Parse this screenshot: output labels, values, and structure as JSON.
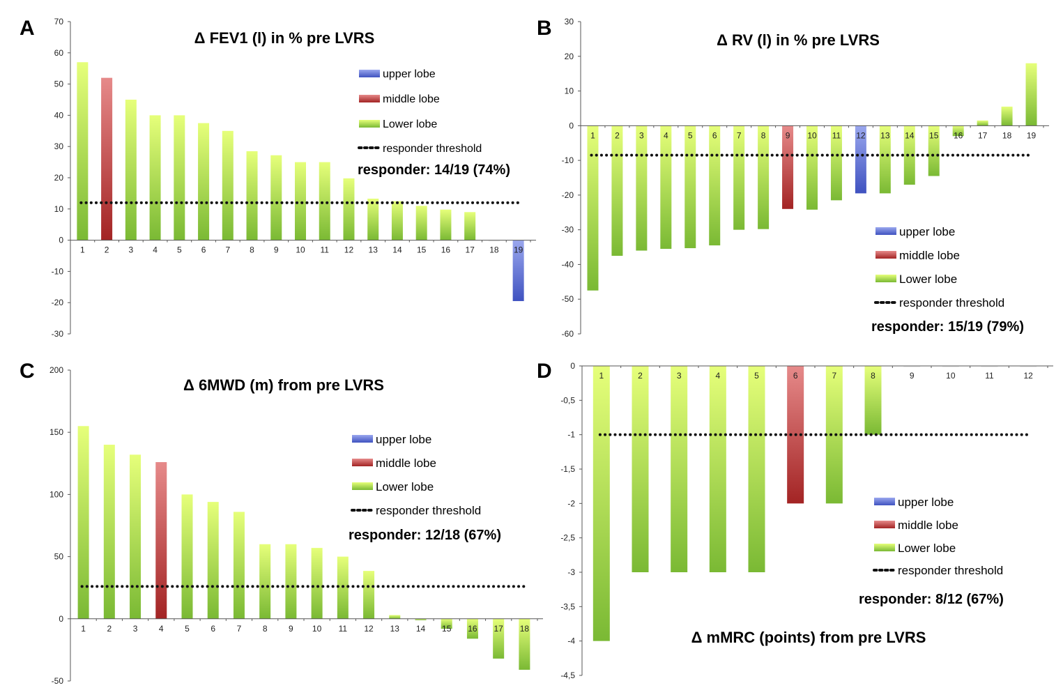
{
  "colors": {
    "upper": "#3f57c9",
    "middle": "#b63434",
    "lower_top": "#e6ff7a",
    "lower_bottom": "#7ab934",
    "upper_top": "#9aa7ee",
    "upper_bottom": "#3f52c0",
    "middle_top": "#e68a8a",
    "middle_bottom": "#a32424",
    "axis": "#555555",
    "threshold": "#111111"
  },
  "chart_data": [
    {
      "panel_letter": "A",
      "type": "bar",
      "title": "Δ FEV1 (l) in % pre LVRS",
      "ylim": [
        -30,
        70
      ],
      "yticks": [
        -30,
        -20,
        -10,
        0,
        10,
        20,
        30,
        40,
        50,
        60,
        70
      ],
      "ytick_labels": [
        "-30",
        "-20",
        "-10",
        "0",
        "10",
        "20",
        "30",
        "40",
        "50",
        "60",
        "70"
      ],
      "categories": [
        "1",
        "2",
        "3",
        "4",
        "5",
        "6",
        "7",
        "8",
        "9",
        "10",
        "11",
        "12",
        "13",
        "14",
        "15",
        "16",
        "17",
        "18",
        "19"
      ],
      "values": [
        57,
        52,
        45,
        40,
        40,
        37.5,
        35,
        28.5,
        27.2,
        25,
        25,
        19.8,
        13.3,
        12.5,
        11,
        9.8,
        9,
        0,
        -19.5
      ],
      "lobes": [
        "lower",
        "middle",
        "lower",
        "lower",
        "lower",
        "lower",
        "lower",
        "lower",
        "lower",
        "lower",
        "lower",
        "lower",
        "lower",
        "lower",
        "lower",
        "lower",
        "lower",
        "lower",
        "upper"
      ],
      "threshold": 12,
      "legend": [
        "upper lobe",
        "middle lobe",
        "Lower lobe",
        "responder threshold"
      ],
      "responder": "responder:  14/19 (74%)"
    },
    {
      "panel_letter": "B",
      "type": "bar",
      "title": "Δ RV (l) in % pre LVRS",
      "ylim": [
        -60,
        30
      ],
      "yticks": [
        -60,
        -50,
        -40,
        -30,
        -20,
        -10,
        0,
        10,
        20,
        30
      ],
      "ytick_labels": [
        "-60",
        "-50",
        "-40",
        "-30",
        "-20",
        "-10",
        "0",
        "10",
        "20",
        "30"
      ],
      "categories": [
        "1",
        "2",
        "3",
        "4",
        "5",
        "6",
        "7",
        "8",
        "9",
        "10",
        "11",
        "12",
        "13",
        "14",
        "15",
        "16",
        "17",
        "18",
        "19"
      ],
      "values": [
        -47.5,
        -37.5,
        -36,
        -35.5,
        -35.3,
        -34.5,
        -30,
        -29.8,
        -24,
        -24.2,
        -21.5,
        -19.5,
        -19.5,
        -17,
        -14.5,
        -3,
        1.5,
        5.5,
        18
      ],
      "lobes": [
        "lower",
        "lower",
        "lower",
        "lower",
        "lower",
        "lower",
        "lower",
        "lower",
        "middle",
        "lower",
        "lower",
        "upper",
        "lower",
        "lower",
        "lower",
        "lower",
        "lower",
        "lower",
        "lower"
      ],
      "threshold": -8.5,
      "legend": [
        "upper lobe",
        "middle lobe",
        "Lower lobe",
        "responder threshold"
      ],
      "responder": "responder:  15/19 (79%)"
    },
    {
      "panel_letter": "C",
      "type": "bar",
      "title": "Δ 6MWD (m) from pre LVRS",
      "ylim": [
        -50,
        200
      ],
      "yticks": [
        -50,
        0,
        50,
        100,
        150,
        200
      ],
      "ytick_labels": [
        "-50",
        "0",
        "50",
        "100",
        "150",
        "200"
      ],
      "categories": [
        "1",
        "2",
        "3",
        "4",
        "5",
        "6",
        "7",
        "8",
        "9",
        "10",
        "11",
        "12",
        "13",
        "14",
        "15",
        "16",
        "17",
        "18"
      ],
      "values": [
        155,
        140,
        132,
        126,
        100,
        94,
        86,
        60,
        60,
        57,
        50,
        38.5,
        3,
        -1,
        -8,
        -16,
        -32,
        -41
      ],
      "lobes": [
        "lower",
        "lower",
        "lower",
        "middle",
        "lower",
        "lower",
        "lower",
        "lower",
        "lower",
        "lower",
        "lower",
        "lower",
        "lower",
        "lower",
        "lower",
        "lower",
        "lower",
        "lower"
      ],
      "threshold": 26,
      "legend": [
        "upper lobe",
        "middle lobe",
        "Lower lobe",
        "responder threshold"
      ],
      "responder": "responder:  12/18 (67%)"
    },
    {
      "panel_letter": "D",
      "type": "bar",
      "title": "Δ mMRC (points) from pre LVRS",
      "ylim": [
        -4.5,
        0
      ],
      "yticks": [
        -4.5,
        -4,
        -3.5,
        -3,
        -2.5,
        -2,
        -1.5,
        -1,
        -0.5,
        0
      ],
      "ytick_labels": [
        "-4,5",
        "-4",
        "-3,5",
        "-3",
        "-2,5",
        "-2",
        "-1,5",
        "-1",
        "-0,5",
        "0"
      ],
      "categories": [
        "1",
        "2",
        "3",
        "4",
        "5",
        "6",
        "7",
        "8",
        "9",
        "10",
        "11",
        "12"
      ],
      "values": [
        -4,
        -3,
        -3,
        -3,
        -3,
        -2,
        -2,
        -1,
        0,
        0,
        0,
        0
      ],
      "lobes": [
        "lower",
        "lower",
        "lower",
        "lower",
        "lower",
        "middle",
        "lower",
        "lower",
        "lower",
        "lower",
        "lower",
        "lower"
      ],
      "threshold": -1,
      "legend": [
        "upper lobe",
        "middle lobe",
        "Lower lobe",
        "responder threshold"
      ],
      "responder": "responder:  8/12 (67%)"
    }
  ]
}
